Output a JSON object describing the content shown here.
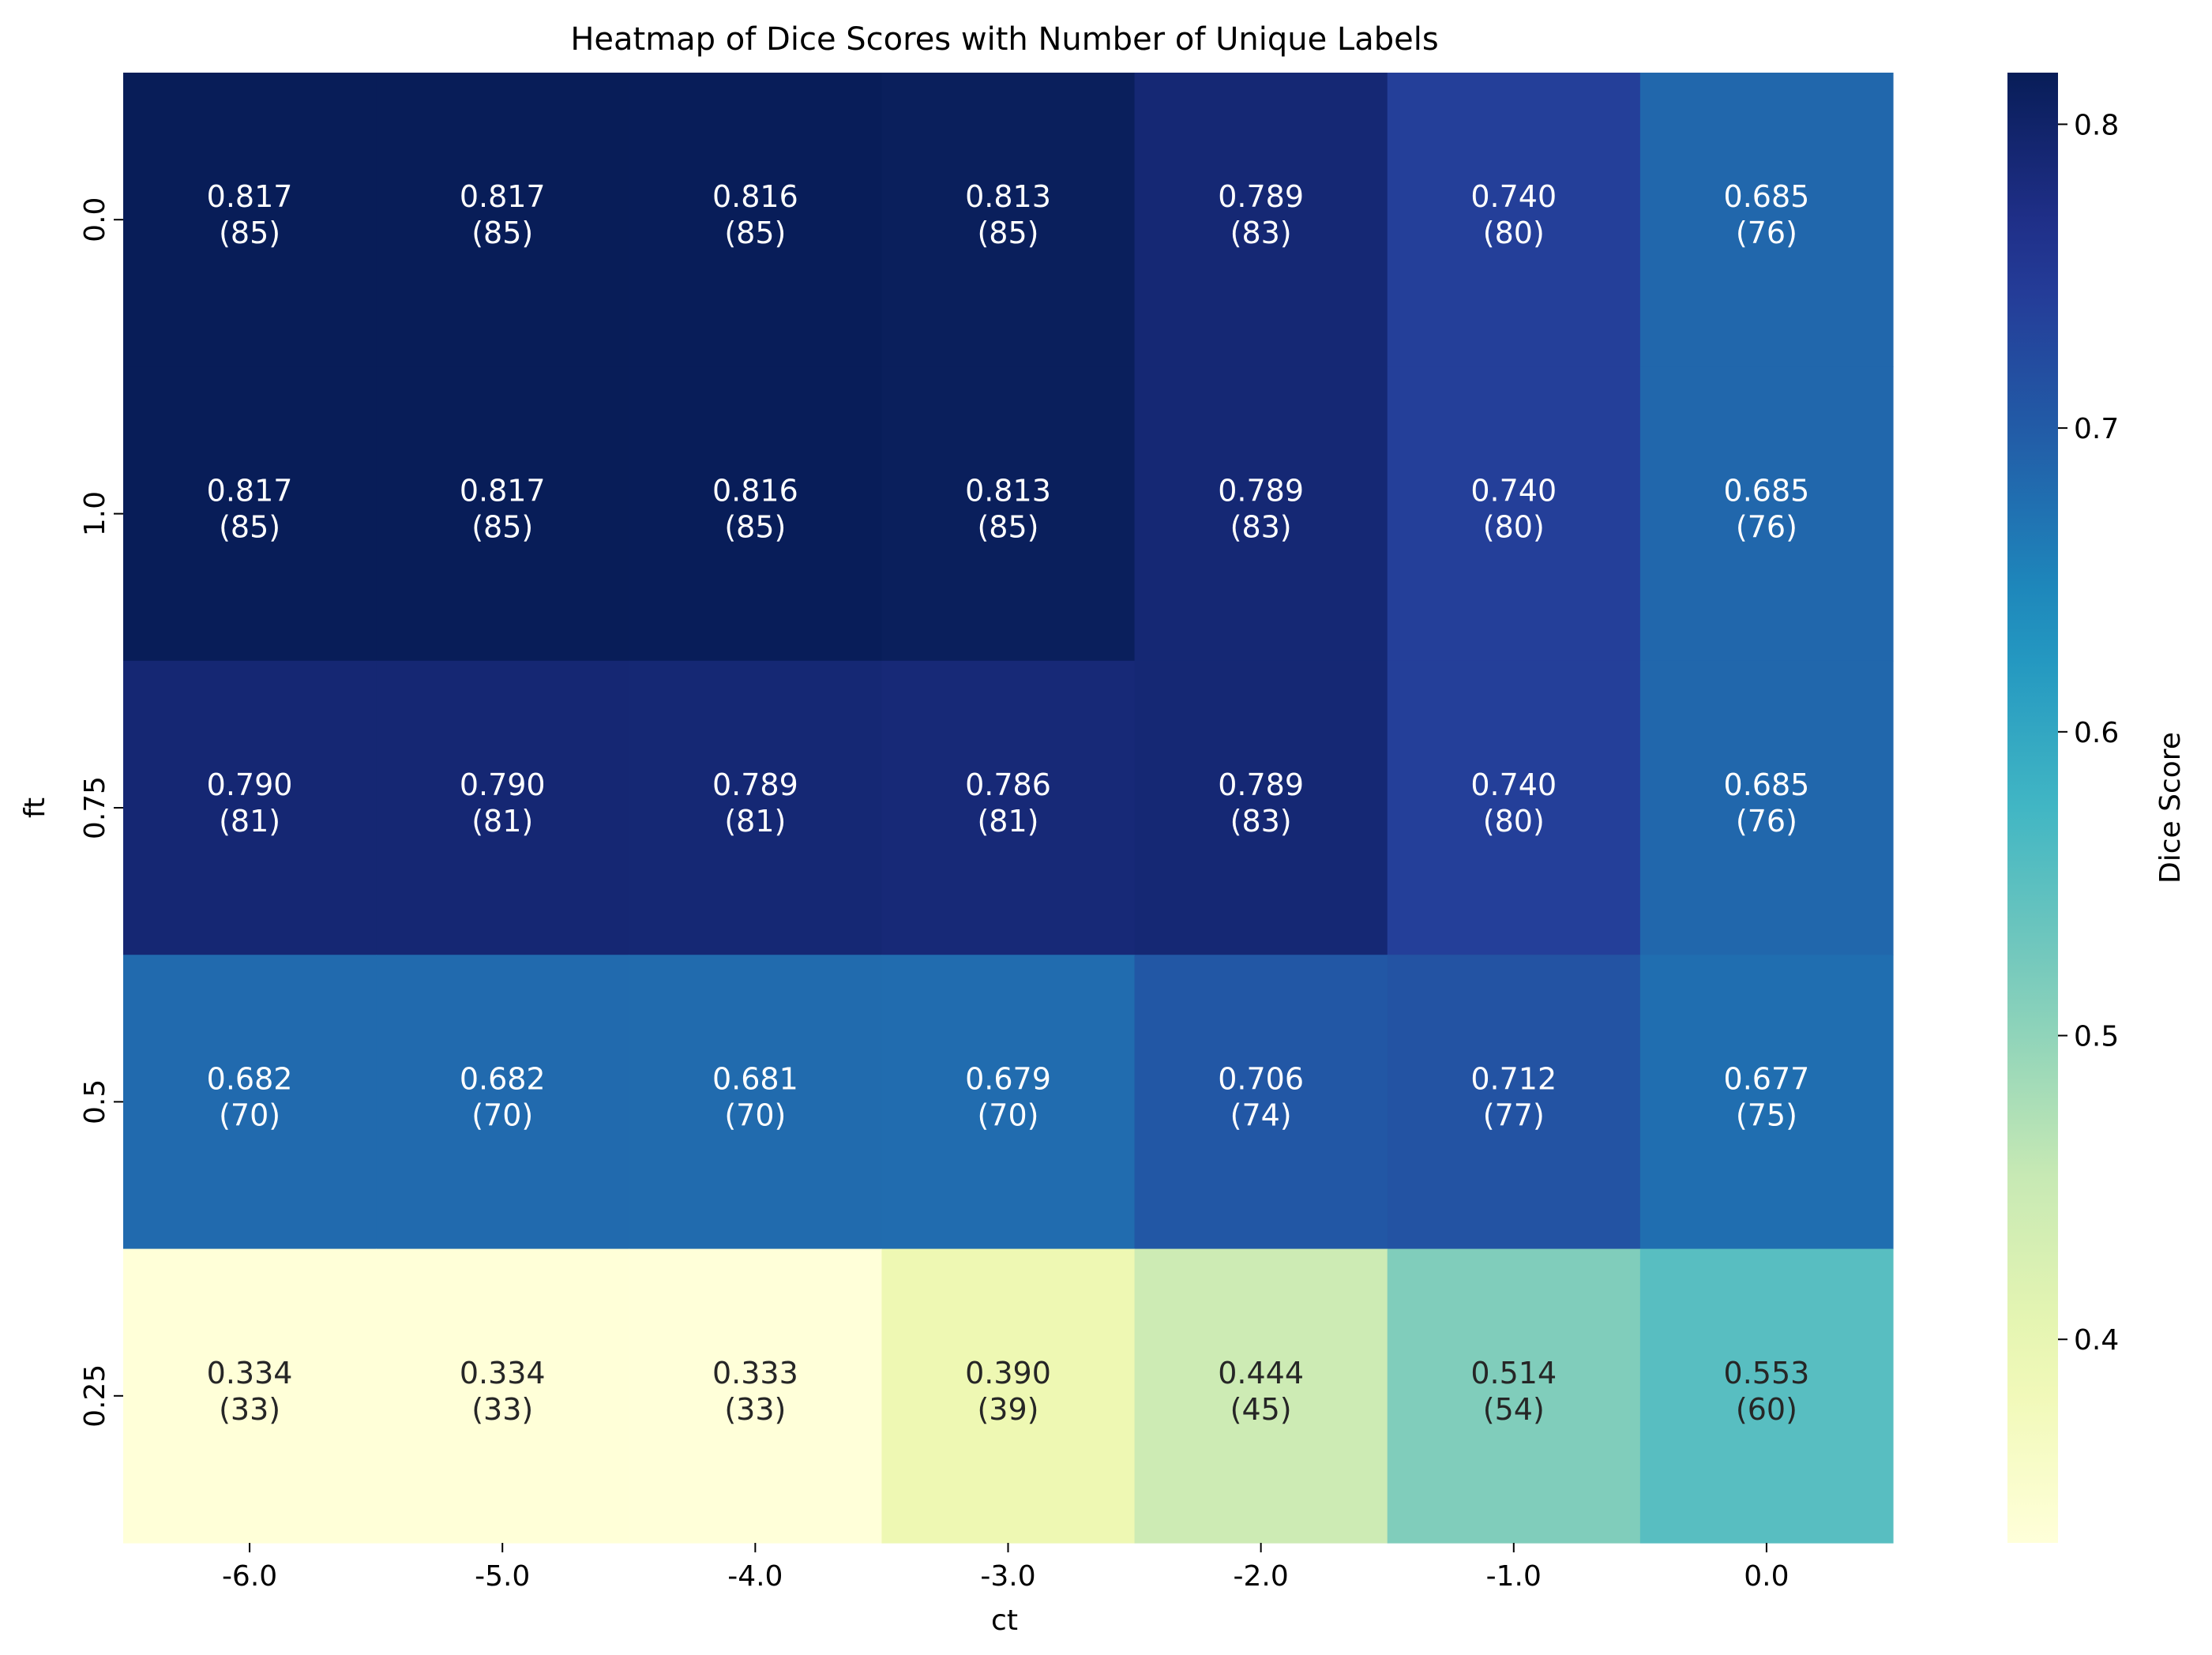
{
  "chart_data": {
    "type": "heatmap",
    "title": "Heatmap of Dice Scores with Number of Unique Labels",
    "xlabel": "ct",
    "ylabel": "ft",
    "x_categories": [
      "-6.0",
      "-5.0",
      "-4.0",
      "-3.0",
      "-2.0",
      "-1.0",
      "0.0"
    ],
    "y_categories": [
      "0.0",
      "1.0",
      "0.75",
      "0.5",
      "0.25"
    ],
    "values": [
      [
        0.817,
        0.817,
        0.816,
        0.813,
        0.789,
        0.74,
        0.685
      ],
      [
        0.817,
        0.817,
        0.816,
        0.813,
        0.789,
        0.74,
        0.685
      ],
      [
        0.79,
        0.79,
        0.789,
        0.786,
        0.789,
        0.74,
        0.685
      ],
      [
        0.682,
        0.682,
        0.681,
        0.679,
        0.706,
        0.712,
        0.677
      ],
      [
        0.334,
        0.334,
        0.333,
        0.39,
        0.444,
        0.514,
        0.553
      ]
    ],
    "labels": [
      [
        "0.817\n(85)",
        "0.817\n(85)",
        "0.816\n(85)",
        "0.813\n(85)",
        "0.789\n(83)",
        "0.740\n(80)",
        "0.685\n(76)"
      ],
      [
        "0.817\n(85)",
        "0.817\n(85)",
        "0.816\n(85)",
        "0.813\n(85)",
        "0.789\n(83)",
        "0.740\n(80)",
        "0.685\n(76)"
      ],
      [
        "0.790\n(81)",
        "0.790\n(81)",
        "0.789\n(81)",
        "0.786\n(81)",
        "0.789\n(83)",
        "0.740\n(80)",
        "0.685\n(76)"
      ],
      [
        "0.682\n(70)",
        "0.682\n(70)",
        "0.681\n(70)",
        "0.679\n(70)",
        "0.706\n(74)",
        "0.712\n(77)",
        "0.677\n(75)"
      ],
      [
        "0.334\n(33)",
        "0.334\n(33)",
        "0.333\n(33)",
        "0.390\n(39)",
        "0.444\n(45)",
        "0.514\n(54)",
        "0.553\n(60)"
      ]
    ],
    "colorbar": {
      "label": "Dice Score",
      "vmin": 0.333,
      "vmax": 0.817,
      "ticks": [
        "0.4",
        "0.5",
        "0.6",
        "0.7",
        "0.8"
      ],
      "colormap": "YlGnBu"
    },
    "grid": false
  }
}
